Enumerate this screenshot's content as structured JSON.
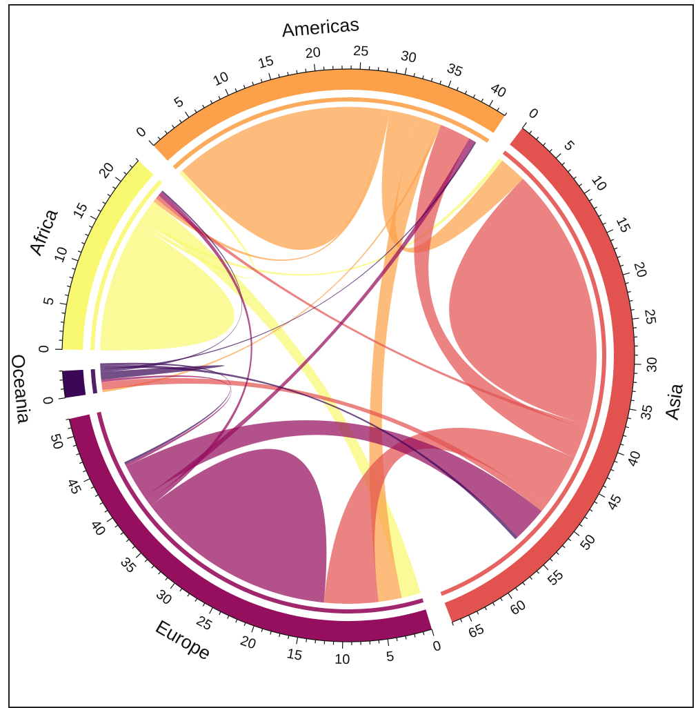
{
  "chart_data": {
    "type": "chord",
    "title": "",
    "sectors": [
      {
        "name": "Africa",
        "total": 23,
        "color": "#F8F871",
        "tick_labels": [
          "0",
          "5",
          "10",
          "15",
          "20"
        ]
      },
      {
        "name": "Americas",
        "total": 42,
        "color": "#FCA14A",
        "tick_labels": [
          "0",
          "5",
          "10",
          "15",
          "20",
          "25",
          "30",
          "35",
          "40"
        ]
      },
      {
        "name": "Asia",
        "total": 67,
        "color": "#E25350",
        "tick_labels": [
          "0",
          "5",
          "10",
          "15",
          "20",
          "25",
          "30",
          "35",
          "40",
          "45",
          "50",
          "55",
          "60",
          "65"
        ]
      },
      {
        "name": "Europe",
        "total": 52,
        "color": "#960E5E",
        "tick_labels": [
          "0",
          "5",
          "10",
          "15",
          "20",
          "25",
          "30",
          "35",
          "40",
          "45",
          "50"
        ]
      },
      {
        "name": "Oceania",
        "total": 3,
        "color": "#3B0857",
        "tick_labels": [
          "0"
        ]
      }
    ],
    "flows": [
      {
        "from": "Africa",
        "to": "Africa",
        "value": 8.5
      },
      {
        "from": "Africa",
        "to": "Americas",
        "value": 0.5
      },
      {
        "from": "Africa",
        "to": "Asia",
        "value": 0.5
      },
      {
        "from": "Africa",
        "to": "Europe",
        "value": 2.5
      },
      {
        "from": "Americas",
        "to": "Americas",
        "value": 14
      },
      {
        "from": "Americas",
        "to": "Africa",
        "value": 0.5
      },
      {
        "from": "Americas",
        "to": "Asia",
        "value": 3.5
      },
      {
        "from": "Americas",
        "to": "Europe",
        "value": 3
      },
      {
        "from": "Americas",
        "to": "Oceania",
        "value": 0.3
      },
      {
        "from": "Asia",
        "to": "Asia",
        "value": 17
      },
      {
        "from": "Asia",
        "to": "Africa",
        "value": 0.5
      },
      {
        "from": "Asia",
        "to": "Americas",
        "value": 4
      },
      {
        "from": "Asia",
        "to": "Europe",
        "value": 7
      },
      {
        "from": "Asia",
        "to": "Oceania",
        "value": 1
      },
      {
        "from": "Europe",
        "to": "Europe",
        "value": 13
      },
      {
        "from": "Europe",
        "to": "Africa",
        "value": 0.6
      },
      {
        "from": "Europe",
        "to": "Americas",
        "value": 0.8
      },
      {
        "from": "Europe",
        "to": "Asia",
        "value": 4.5
      },
      {
        "from": "Europe",
        "to": "Oceania",
        "value": 0.3
      },
      {
        "from": "Oceania",
        "to": "Oceania",
        "value": 0.5
      },
      {
        "from": "Oceania",
        "to": "Africa",
        "value": 0.2
      },
      {
        "from": "Oceania",
        "to": "Americas",
        "value": 0.2
      },
      {
        "from": "Oceania",
        "to": "Asia",
        "value": 0.4
      },
      {
        "from": "Oceania",
        "to": "Europe",
        "value": 0.3
      }
    ],
    "legend": "none",
    "grid": false
  }
}
